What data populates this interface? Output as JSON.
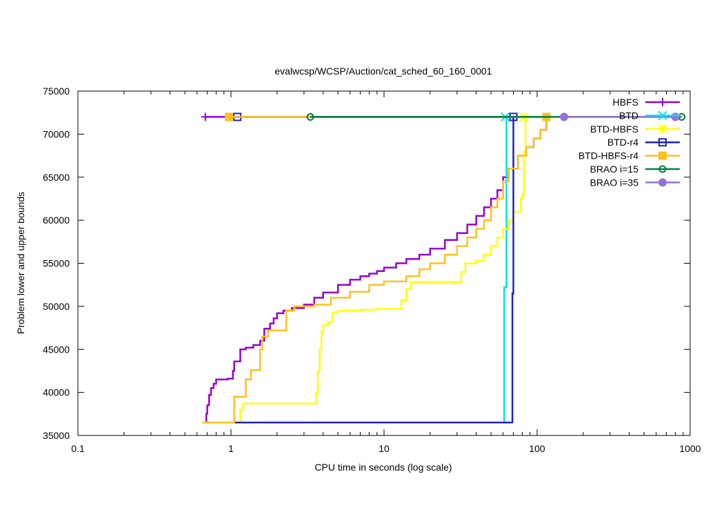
{
  "chart_data": {
    "type": "line",
    "title": "evalwcsp/WCSP/Auction/cat_sched_60_160_0001",
    "xlabel": "CPU time in seconds (log scale)",
    "ylabel": "Problem lower and upper bounds",
    "x_scale": "log",
    "xlim": [
      0.1,
      1000
    ],
    "ylim": [
      35000,
      75000
    ],
    "x_ticks": [
      0.1,
      1,
      10,
      100,
      1000
    ],
    "x_tick_labels": [
      "0.1",
      "1",
      "10",
      "100",
      "1000"
    ],
    "y_ticks": [
      35000,
      40000,
      45000,
      50000,
      55000,
      60000,
      65000,
      70000,
      75000
    ],
    "y_tick_labels": [
      "35000",
      "40000",
      "45000",
      "50000",
      "55000",
      "60000",
      "65000",
      "70000",
      "75000"
    ],
    "grid": false,
    "legend_position": "top-right",
    "series": [
      {
        "name": "HBFS",
        "color": "#9400d3",
        "marker": "plus",
        "upper": [
          [
            0.68,
            72000
          ],
          [
            115,
            72000
          ]
        ],
        "lower": [
          [
            0.68,
            36500
          ],
          [
            0.69,
            37500
          ],
          [
            0.7,
            38500
          ],
          [
            0.72,
            39700
          ],
          [
            0.74,
            40500
          ],
          [
            0.77,
            41000
          ],
          [
            0.8,
            41500
          ],
          [
            0.95,
            41600
          ],
          [
            1.03,
            42500
          ],
          [
            1.05,
            43600
          ],
          [
            1.15,
            45000
          ],
          [
            1.25,
            45200
          ],
          [
            1.4,
            45500
          ],
          [
            1.55,
            46000
          ],
          [
            1.65,
            47400
          ],
          [
            1.8,
            48000
          ],
          [
            1.9,
            48600
          ],
          [
            2.0,
            49200
          ],
          [
            2.2,
            49500
          ],
          [
            2.5,
            49800
          ],
          [
            3.0,
            50200
          ],
          [
            3.5,
            51000
          ],
          [
            4.0,
            51600
          ],
          [
            5.0,
            52500
          ],
          [
            6.0,
            53100
          ],
          [
            7.0,
            53500
          ],
          [
            8.0,
            53800
          ],
          [
            9.0,
            54100
          ],
          [
            10.0,
            54500
          ],
          [
            12.0,
            55000
          ],
          [
            14.0,
            55500
          ],
          [
            17.0,
            56000
          ],
          [
            20.0,
            56700
          ],
          [
            25.0,
            57700
          ],
          [
            30.0,
            58500
          ],
          [
            35.0,
            59500
          ],
          [
            40.0,
            60500
          ],
          [
            45.0,
            61500
          ],
          [
            50.0,
            62500
          ],
          [
            55.0,
            63500
          ],
          [
            60.0,
            65000
          ],
          [
            65.0,
            66000
          ],
          [
            75.0,
            67500
          ],
          [
            85.0,
            68500
          ],
          [
            95.0,
            69500
          ],
          [
            105.0,
            70500
          ],
          [
            115.0,
            72000
          ]
        ]
      },
      {
        "name": "BTD",
        "color": "#00e5ee",
        "marker": "cross",
        "upper": [
          [
            62,
            72000
          ],
          [
            62,
            72000
          ]
        ],
        "lower": [
          [
            0.65,
            36500
          ],
          [
            60,
            36500
          ],
          [
            61,
            52200
          ],
          [
            63,
            52300
          ],
          [
            63,
            72000
          ]
        ]
      },
      {
        "name": "BTD-HBFS",
        "color": "#ffff00",
        "marker": "star",
        "upper": [
          [
            82,
            72000
          ],
          [
            82,
            72000
          ]
        ],
        "lower": [
          [
            1.1,
            36500
          ],
          [
            1.15,
            38000
          ],
          [
            1.2,
            38700
          ],
          [
            3.5,
            38700
          ],
          [
            3.6,
            40000
          ],
          [
            3.7,
            42500
          ],
          [
            3.8,
            45000
          ],
          [
            3.9,
            47000
          ],
          [
            4.0,
            47800
          ],
          [
            4.3,
            48200
          ],
          [
            4.6,
            49300
          ],
          [
            5.0,
            49500
          ],
          [
            7.0,
            49600
          ],
          [
            9.0,
            49700
          ],
          [
            12.5,
            49700
          ],
          [
            13.0,
            50700
          ],
          [
            14.0,
            52000
          ],
          [
            15.0,
            52800
          ],
          [
            30.0,
            52800
          ],
          [
            32.0,
            54000
          ],
          [
            34.0,
            55000
          ],
          [
            40.0,
            55300
          ],
          [
            45.0,
            56000
          ],
          [
            50.0,
            57000
          ],
          [
            55.0,
            58000
          ],
          [
            60.0,
            59000
          ],
          [
            65.0,
            60000
          ],
          [
            70.0,
            61000
          ],
          [
            78.0,
            62500
          ],
          [
            80.0,
            63000
          ],
          [
            82.0,
            68000
          ],
          [
            84.0,
            72000
          ]
        ]
      },
      {
        "name": "BTD-r4",
        "color": "#2020c0",
        "marker": "square",
        "upper": [
          [
            1.1,
            72000
          ],
          [
            70,
            72000
          ]
        ],
        "lower": [
          [
            0.65,
            36500
          ],
          [
            68,
            36500
          ],
          [
            69,
            51500
          ],
          [
            70,
            72000
          ]
        ]
      },
      {
        "name": "BTD-HBFS-r4",
        "color": "#ffc020",
        "marker": "filled-square",
        "upper": [
          [
            0.97,
            72000
          ],
          [
            115,
            72000
          ]
        ],
        "lower": [
          [
            0.65,
            36500
          ],
          [
            0.97,
            36500
          ],
          [
            1.05,
            39500
          ],
          [
            1.2,
            39500
          ],
          [
            1.25,
            41500
          ],
          [
            1.35,
            42600
          ],
          [
            1.5,
            42600
          ],
          [
            1.55,
            45000
          ],
          [
            1.6,
            46500
          ],
          [
            1.75,
            47200
          ],
          [
            2.2,
            47200
          ],
          [
            2.3,
            49500
          ],
          [
            2.6,
            50000
          ],
          [
            3.5,
            50200
          ],
          [
            4.5,
            51000
          ],
          [
            6.0,
            51700
          ],
          [
            8.0,
            52500
          ],
          [
            10.0,
            52900
          ],
          [
            14.0,
            53500
          ],
          [
            17.0,
            54300
          ],
          [
            20.0,
            55000
          ],
          [
            25.0,
            56000
          ],
          [
            30.0,
            57000
          ],
          [
            35.0,
            58000
          ],
          [
            40.0,
            59000
          ],
          [
            45.0,
            60000
          ],
          [
            50.0,
            61500
          ],
          [
            55.0,
            62500
          ],
          [
            60.0,
            64500
          ],
          [
            65.0,
            66000
          ],
          [
            75.0,
            67500
          ],
          [
            85.0,
            68500
          ],
          [
            95.0,
            69500
          ],
          [
            105.0,
            70500
          ],
          [
            115.0,
            72000
          ]
        ]
      },
      {
        "name": "BRAO i=15",
        "color": "#008040",
        "marker": "circle",
        "upper": [
          [
            3.3,
            72000
          ],
          [
            880,
            72000
          ]
        ],
        "lower": []
      },
      {
        "name": "BRAO i=35",
        "color": "#9370db",
        "marker": "filled-circle",
        "upper": [
          [
            150,
            72000
          ],
          [
            800,
            72000
          ]
        ],
        "lower": []
      }
    ]
  }
}
